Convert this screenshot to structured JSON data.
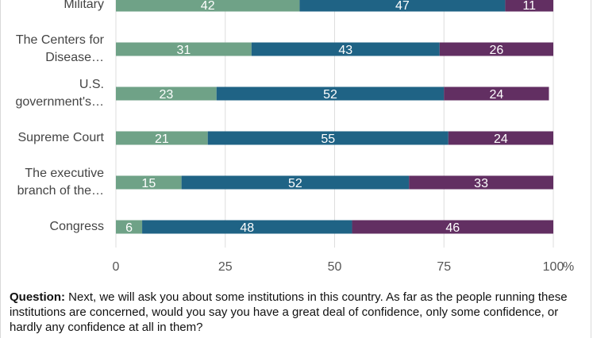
{
  "chart_data": {
    "type": "bar",
    "orientation": "horizontal",
    "stacked": true,
    "categories": [
      [
        "Military"
      ],
      [
        "The Centers for",
        "Disease…"
      ],
      [
        "U.S.",
        "government's…"
      ],
      [
        "Supreme Court"
      ],
      [
        "The executive",
        "branch of the…"
      ],
      [
        "Congress"
      ]
    ],
    "series": [
      {
        "values": [
          42,
          31,
          23,
          21,
          15,
          6
        ],
        "color": "#6fa287"
      },
      {
        "values": [
          47,
          43,
          52,
          55,
          52,
          48
        ],
        "color": "#1f6385"
      },
      {
        "values": [
          11,
          26,
          24,
          24,
          33,
          46
        ],
        "color": "#622f62"
      }
    ],
    "xlim": [
      0,
      100
    ],
    "xticks": [
      "0",
      "25",
      "50",
      "75",
      "100"
    ],
    "x_unit": "%",
    "grid": true
  },
  "footnote": {
    "label": "Question:",
    "text": "Next, we will ask you about some institutions in this country. As far as the people running these institutions are concerned, would you say you have a great deal of confidence, only some confidence, or hardly any confidence at all in them?"
  }
}
